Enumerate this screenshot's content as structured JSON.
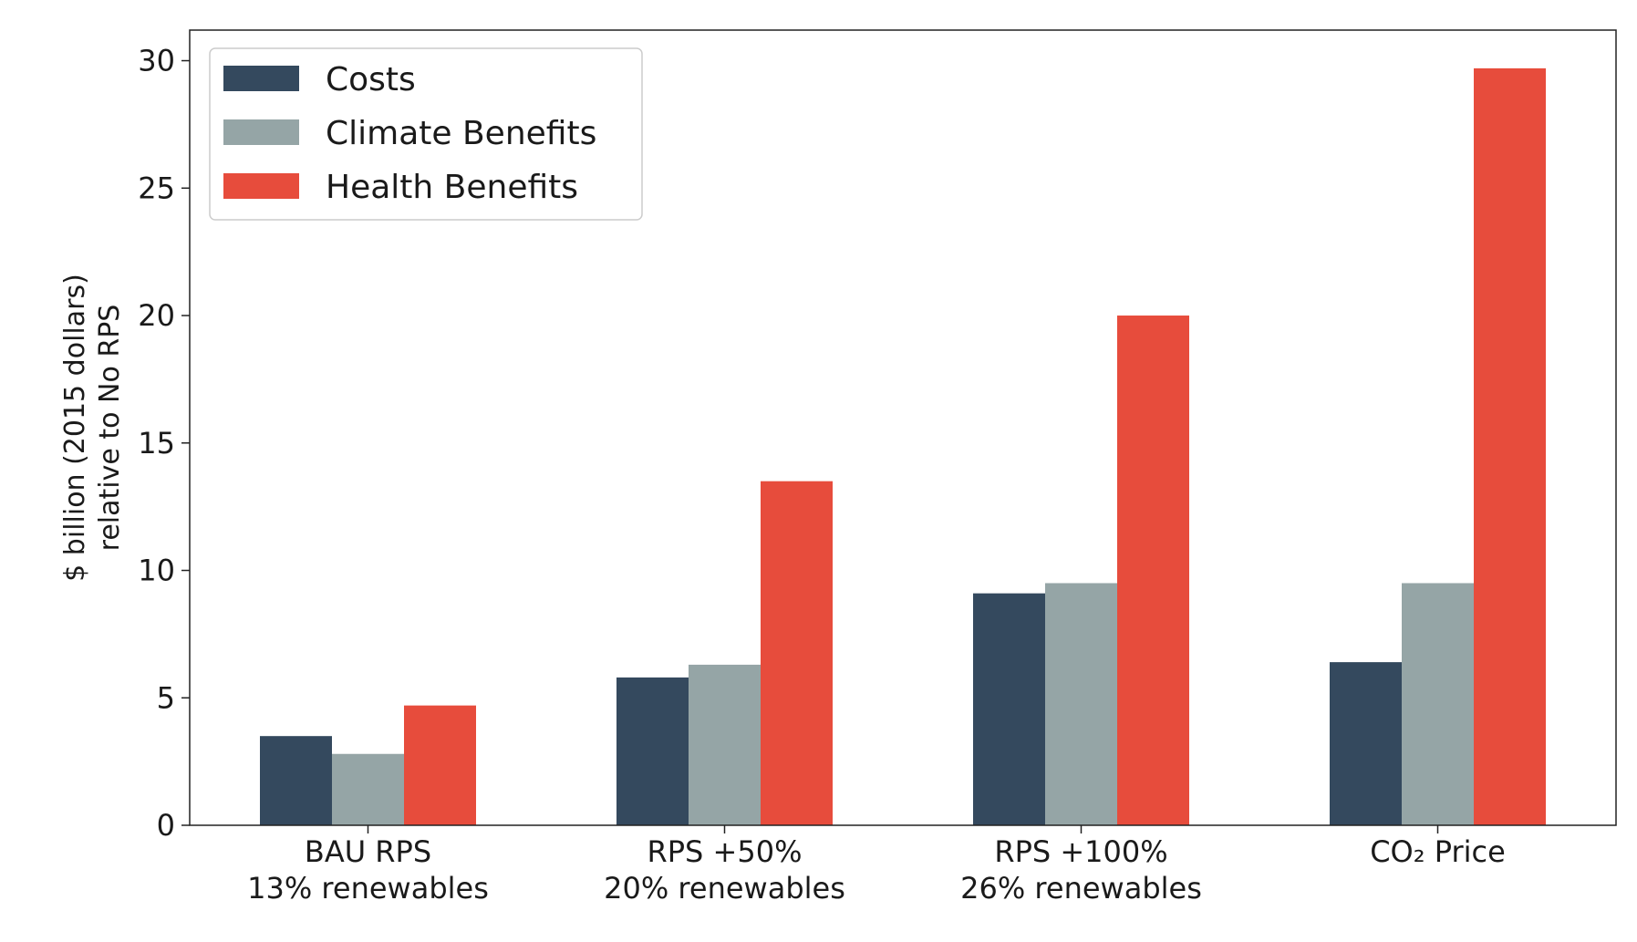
{
  "chart_data": {
    "type": "bar",
    "categories": [
      [
        "BAU RPS",
        "13% renewables"
      ],
      [
        "RPS +50%",
        "20% renewables"
      ],
      [
        "RPS +100%",
        "26% renewables"
      ],
      [
        "CO₂ Price"
      ]
    ],
    "series": [
      {
        "name": "Costs",
        "color": "#34495e",
        "values": [
          3.5,
          5.8,
          9.1,
          6.4
        ]
      },
      {
        "name": "Climate Benefits",
        "color": "#95a5a6",
        "values": [
          2.8,
          6.3,
          9.5,
          9.5
        ]
      },
      {
        "name": "Health Benefits",
        "color": "#e74c3c",
        "values": [
          4.7,
          13.5,
          20.0,
          29.7
        ]
      }
    ],
    "ylabel": [
      "$ billion (2015 dollars)",
      "relative to No RPS"
    ],
    "ylim": [
      0,
      31.2
    ],
    "yticks": [
      0,
      5,
      10,
      15,
      20,
      25,
      30
    ],
    "grid": false,
    "legend_position": "top-left"
  }
}
